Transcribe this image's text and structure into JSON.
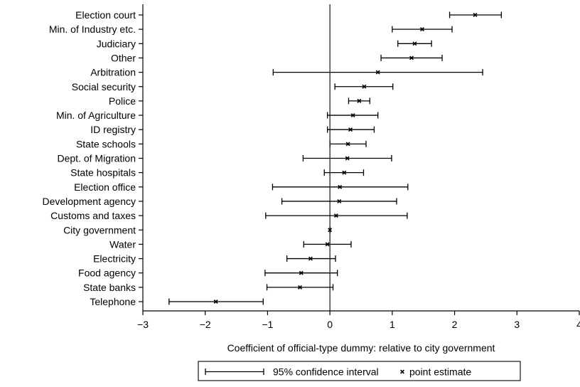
{
  "chart_data": {
    "type": "scatter",
    "subtype": "forest-plot",
    "title": "",
    "xlabel": "Coefficient of official-type dummy: relative to city government",
    "ylabel": "",
    "xlim": [
      -3,
      4
    ],
    "xticks": [
      -3,
      -2,
      -1,
      0,
      1,
      2,
      3,
      4
    ],
    "xtick_labels": [
      "−3",
      "−2",
      "−1",
      "0",
      "1",
      "2",
      "3",
      "4"
    ],
    "reference_line": 0,
    "grid": false,
    "legend": {
      "placement": "bottom-center",
      "entries": [
        {
          "label": "95% confidence interval",
          "symbol": "interval"
        },
        {
          "label": "point estimate",
          "symbol": "x-marker"
        }
      ]
    },
    "series": [
      {
        "points": [
          {
            "category": "Election court",
            "estimate": 2.33,
            "lower": 1.92,
            "upper": 2.75
          },
          {
            "category": "Min. of Industry etc.",
            "estimate": 1.48,
            "lower": 1.0,
            "upper": 1.96
          },
          {
            "category": "Judiciary",
            "estimate": 1.36,
            "lower": 1.09,
            "upper": 1.63
          },
          {
            "category": "Other",
            "estimate": 1.31,
            "lower": 0.82,
            "upper": 1.8
          },
          {
            "category": "Arbitration",
            "estimate": 0.77,
            "lower": -0.91,
            "upper": 2.45
          },
          {
            "category": "Social security",
            "estimate": 0.55,
            "lower": 0.08,
            "upper": 1.01
          },
          {
            "category": "Police",
            "estimate": 0.47,
            "lower": 0.3,
            "upper": 0.64
          },
          {
            "category": "Min. of Agriculture",
            "estimate": 0.37,
            "lower": -0.04,
            "upper": 0.77
          },
          {
            "category": "ID registry",
            "estimate": 0.33,
            "lower": -0.04,
            "upper": 0.71
          },
          {
            "category": "State schools",
            "estimate": 0.29,
            "lower": 0.0,
            "upper": 0.58
          },
          {
            "category": "Dept. of Migration",
            "estimate": 0.28,
            "lower": -0.43,
            "upper": 0.99
          },
          {
            "category": "State hospitals",
            "estimate": 0.23,
            "lower": -0.09,
            "upper": 0.54
          },
          {
            "category": "Election office",
            "estimate": 0.16,
            "lower": -0.92,
            "upper": 1.25
          },
          {
            "category": "Development agency",
            "estimate": 0.15,
            "lower": -0.77,
            "upper": 1.07
          },
          {
            "category": "Customs and taxes",
            "estimate": 0.1,
            "lower": -1.03,
            "upper": 1.24
          },
          {
            "category": "City government",
            "estimate": 0.0,
            "lower": 0.0,
            "upper": 0.0
          },
          {
            "category": "Water",
            "estimate": -0.04,
            "lower": -0.42,
            "upper": 0.34
          },
          {
            "category": "Electricity",
            "estimate": -0.31,
            "lower": -0.69,
            "upper": 0.09
          },
          {
            "category": "Food agency",
            "estimate": -0.46,
            "lower": -1.04,
            "upper": 0.12
          },
          {
            "category": "State banks",
            "estimate": -0.48,
            "lower": -1.01,
            "upper": 0.05
          },
          {
            "category": "Telephone",
            "estimate": -1.83,
            "lower": -2.58,
            "upper": -1.07
          }
        ]
      }
    ]
  }
}
